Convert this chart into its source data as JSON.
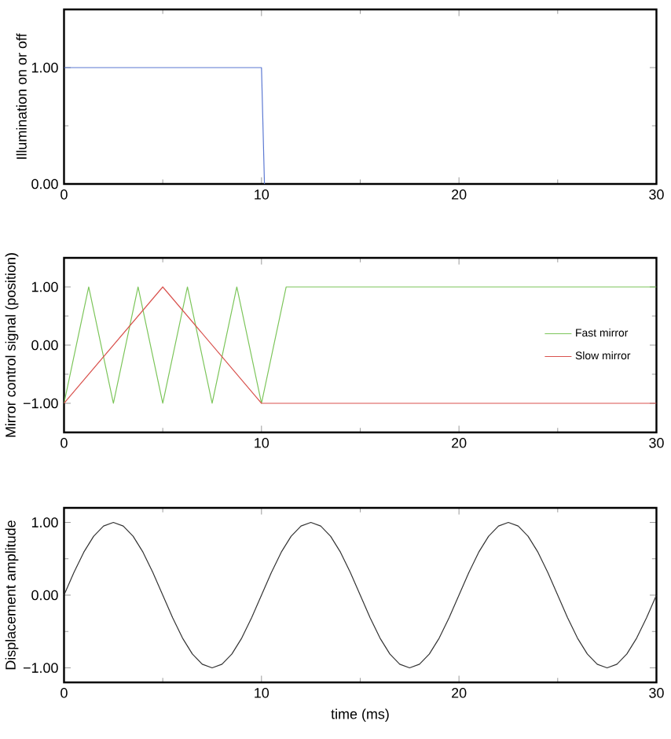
{
  "chart_data": [
    {
      "type": "line",
      "ylabel": "Illumination on or off",
      "xlim": [
        0,
        30
      ],
      "xticks": [
        0,
        10,
        20,
        30
      ],
      "ylim": [
        0,
        1.5
      ],
      "yticks": [
        {
          "value": 0,
          "label": "0.00"
        },
        {
          "value": 1,
          "label": "1.00"
        }
      ],
      "grid": false,
      "legend": false,
      "series": [
        {
          "color": "#5b78d2",
          "x": [
            0,
            10,
            10.15
          ],
          "values": [
            1,
            1,
            0
          ]
        }
      ]
    },
    {
      "type": "line",
      "ylabel": "Mirror control signal (position)",
      "xlim": [
        0,
        30
      ],
      "xticks": [
        0,
        10,
        20,
        30
      ],
      "ylim": [
        -1.5,
        1.5
      ],
      "yticks": [
        {
          "value": -1,
          "label": "−1.00"
        },
        {
          "value": 0,
          "label": "0.00"
        },
        {
          "value": 1,
          "label": "1.00"
        }
      ],
      "grid": false,
      "legend": "right",
      "series": [
        {
          "name": "Fast mirror",
          "color": "#7cc55a",
          "x": [
            0,
            1.25,
            2.5,
            3.75,
            5,
            6.25,
            7.5,
            8.75,
            10,
            11.25,
            30
          ],
          "values": [
            -1,
            1,
            -1,
            1,
            -1,
            1,
            -1,
            1,
            -1,
            1,
            1
          ]
        },
        {
          "name": "Slow mirror",
          "color": "#d9534f",
          "x": [
            0,
            5,
            10,
            30
          ],
          "values": [
            -1,
            1,
            -1,
            -1
          ]
        }
      ]
    },
    {
      "type": "line",
      "xlabel": "time (ms)",
      "ylabel": "Displacement amplitude",
      "xlim": [
        0,
        30
      ],
      "xticks": [
        0,
        10,
        20,
        30
      ],
      "ylim": [
        -1.2,
        1.2
      ],
      "yticks": [
        {
          "value": -1,
          "label": "−1.00"
        },
        {
          "value": 0,
          "label": "0.00"
        },
        {
          "value": 1,
          "label": "1.00"
        }
      ],
      "grid": false,
      "legend": false,
      "series": [
        {
          "color": "#333333",
          "x": [
            0,
            0.5,
            1,
            1.5,
            2,
            2.5,
            3,
            3.5,
            4,
            4.5,
            5,
            5.5,
            6,
            6.5,
            7,
            7.5,
            8,
            8.5,
            9,
            9.5,
            10,
            10.5,
            11,
            11.5,
            12,
            12.5,
            13,
            13.5,
            14,
            14.5,
            15,
            15.5,
            16,
            16.5,
            17,
            17.5,
            18,
            18.5,
            19,
            19.5,
            20,
            20.5,
            21,
            21.5,
            22,
            22.5,
            23,
            23.5,
            24,
            24.5,
            25,
            25.5,
            26,
            26.5,
            27,
            27.5,
            28,
            28.5,
            29,
            29.5,
            30
          ],
          "values": [
            0,
            0.31,
            0.59,
            0.81,
            0.95,
            1,
            0.95,
            0.81,
            0.59,
            0.31,
            0,
            -0.31,
            -0.59,
            -0.81,
            -0.95,
            -1,
            -0.95,
            -0.81,
            -0.59,
            -0.31,
            0,
            0.31,
            0.59,
            0.81,
            0.95,
            1,
            0.95,
            0.81,
            0.59,
            0.31,
            0,
            -0.31,
            -0.59,
            -0.81,
            -0.95,
            -1,
            -0.95,
            -0.81,
            -0.59,
            -0.31,
            0,
            0.31,
            0.59,
            0.81,
            0.95,
            1,
            0.95,
            0.81,
            0.59,
            0.31,
            0,
            -0.31,
            -0.59,
            -0.81,
            -0.95,
            -1,
            -0.95,
            -0.81,
            -0.59,
            -0.31,
            0
          ]
        }
      ]
    }
  ]
}
